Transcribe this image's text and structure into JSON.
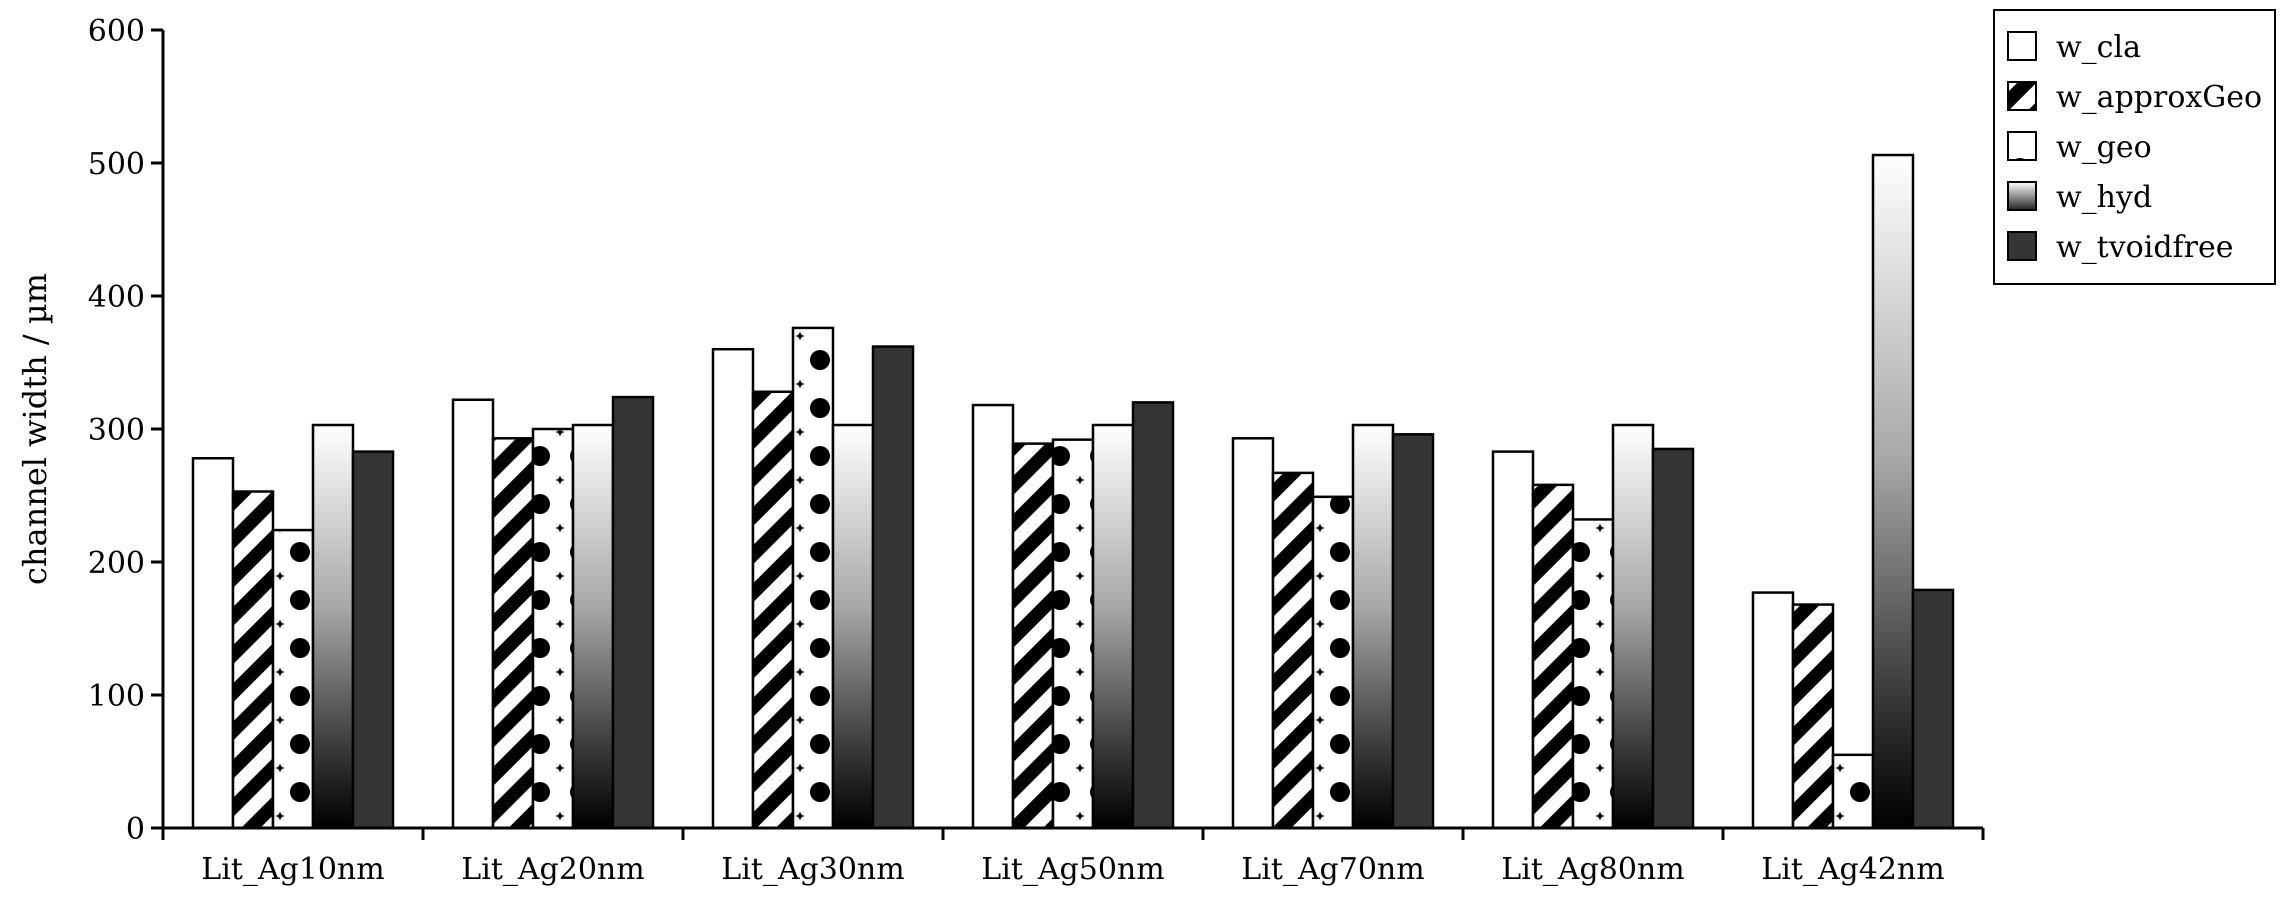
{
  "chart_data": {
    "type": "bar",
    "title": "",
    "xlabel": "",
    "ylabel": "channel width / µm",
    "ylim": [
      0,
      600
    ],
    "yticks": [
      0,
      100,
      200,
      300,
      400,
      500,
      600
    ],
    "grid": false,
    "legend_position": "top-right",
    "categories": [
      "Lit_Ag10nm",
      "Lit_Ag20nm",
      "Lit_Ag30nm",
      "Lit_Ag50nm",
      "Lit_Ag70nm",
      "Lit_Ag80nm",
      "Lit_Ag42nm"
    ],
    "series": [
      {
        "name": "w_cla",
        "fill": "white",
        "values": [
          278,
          322,
          360,
          318,
          293,
          283,
          177
        ]
      },
      {
        "name": "w_approxGeo",
        "fill": "diagonal-stripes",
        "values": [
          253,
          293,
          328,
          289,
          267,
          258,
          168
        ]
      },
      {
        "name": "w_geo",
        "fill": "dots",
        "values": [
          224,
          300,
          376,
          292,
          249,
          232,
          55
        ]
      },
      {
        "name": "w_hyd",
        "fill": "vertical-gradient",
        "values": [
          303,
          303,
          303,
          303,
          303,
          303,
          506
        ]
      },
      {
        "name": "w_tvoidfree",
        "fill": "dark",
        "values": [
          283,
          324,
          362,
          320,
          296,
          285,
          179
        ]
      }
    ],
    "colors": {
      "white": "#ffffff",
      "dark": "#353535",
      "stroke": "#000000"
    }
  }
}
